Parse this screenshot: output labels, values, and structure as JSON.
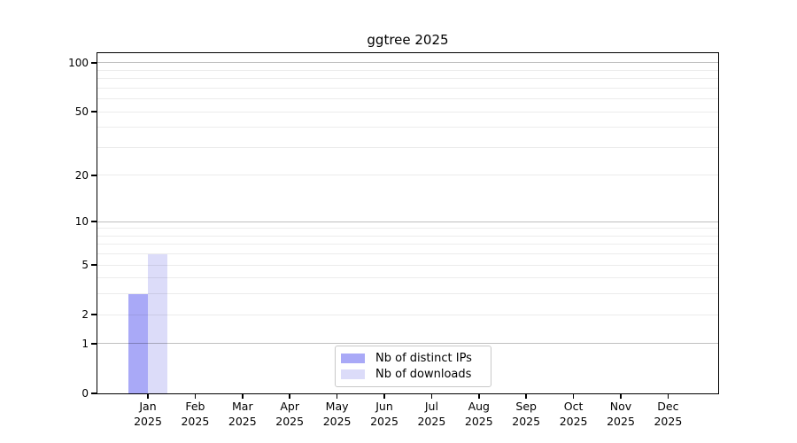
{
  "chart_data": {
    "type": "bar",
    "title": "ggtree 2025",
    "categories": [
      "Jan",
      "Feb",
      "Mar",
      "Apr",
      "May",
      "Jun",
      "Jul",
      "Aug",
      "Sep",
      "Oct",
      "Nov",
      "Dec"
    ],
    "category_year": "2025",
    "series": [
      {
        "name": "Nb of distinct IPs",
        "color": "#a9a9f7",
        "values": [
          3,
          0,
          0,
          0,
          0,
          0,
          0,
          0,
          0,
          0,
          0,
          0
        ]
      },
      {
        "name": "Nb of downloads",
        "color": "#dcdcf9",
        "values": [
          6,
          0,
          0,
          0,
          0,
          0,
          0,
          0,
          0,
          0,
          0,
          0
        ]
      }
    ],
    "xlabel": "",
    "ylabel": "",
    "yscale": "log1p",
    "ylim": [
      0,
      115
    ],
    "ytick_values": [
      0,
      1,
      2,
      5,
      10,
      20,
      50,
      100
    ],
    "major_grid_values": [
      1,
      10,
      100
    ],
    "minor_grid_values": [
      2,
      3,
      4,
      5,
      6,
      7,
      8,
      9,
      20,
      30,
      40,
      50,
      60,
      70,
      80,
      90
    ],
    "grid": true,
    "legend_position": "bottom-center",
    "frame_color": "#000000",
    "text_color": "#000000",
    "background_color": "#ffffff"
  }
}
